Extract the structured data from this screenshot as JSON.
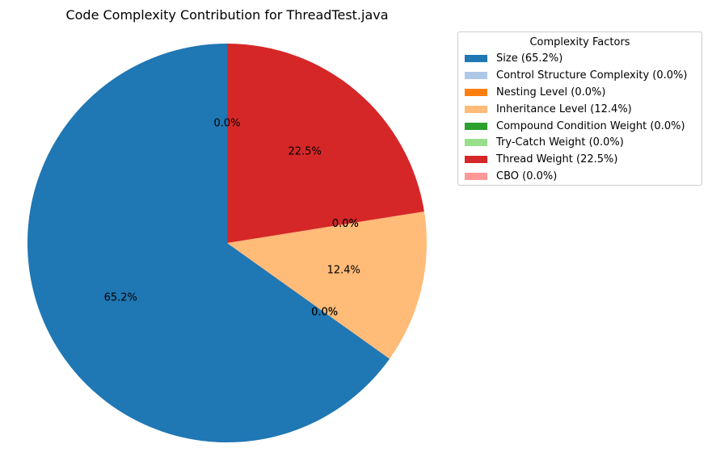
{
  "chart_data": {
    "type": "pie",
    "title": "Code Complexity Contribution for ThreadTest.java",
    "start_angle_deg": 90,
    "direction": "counterclockwise",
    "slices": [
      {
        "label": "Size",
        "value": 65.2,
        "pct_label": "65.2%",
        "color": "#1f77b4"
      },
      {
        "label": "Control Structure Complexity",
        "value": 0.0,
        "pct_label": "0.0%",
        "color": "#aec7e8"
      },
      {
        "label": "Nesting Level",
        "value": 0.0,
        "pct_label": "0.0%",
        "color": "#ff7f0e"
      },
      {
        "label": "Inheritance Level",
        "value": 12.4,
        "pct_label": "12.4%",
        "color": "#ffbb78"
      },
      {
        "label": "Compound Condition Weight",
        "value": 0.0,
        "pct_label": "0.0%",
        "color": "#2ca02c"
      },
      {
        "label": "Try-Catch Weight",
        "value": 0.0,
        "pct_label": "0.0%",
        "color": "#98df8a"
      },
      {
        "label": "Thread Weight",
        "value": 22.5,
        "pct_label": "22.5%",
        "color": "#d62728"
      },
      {
        "label": "CBO",
        "value": 0.0,
        "pct_label": "0.0%",
        "color": "#ff9896"
      }
    ],
    "legend": {
      "title": "Complexity Factors",
      "placement": "upper-right-outside",
      "entries": [
        "Size (65.2%)",
        "Control Structure Complexity (0.0%)",
        "Nesting Level (0.0%)",
        "Inheritance Level (12.4%)",
        "Compound Condition Weight (0.0%)",
        "Try-Catch Weight (0.0%)",
        "Thread Weight (22.5%)",
        "CBO (0.0%)"
      ]
    }
  }
}
